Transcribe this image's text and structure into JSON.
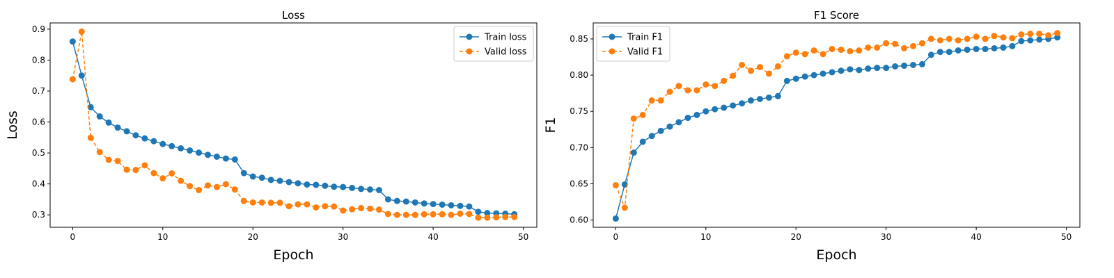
{
  "chart_data": [
    {
      "type": "line",
      "title": "Loss",
      "xlabel": "Epoch",
      "ylabel": "Loss",
      "xlim": [
        -2.5,
        51.5
      ],
      "ylim": [
        0.26,
        0.92
      ],
      "xticks": [
        0,
        10,
        20,
        30,
        40,
        50
      ],
      "yticks": [
        0.3,
        0.4,
        0.5,
        0.6,
        0.7,
        0.8,
        0.9
      ],
      "ytick_labels": [
        "0.3",
        "0.4",
        "0.5",
        "0.6",
        "0.7",
        "0.8",
        "0.9"
      ],
      "grid": false,
      "legend_position": "top-right",
      "x": [
        0,
        1,
        2,
        3,
        4,
        5,
        6,
        7,
        8,
        9,
        10,
        11,
        12,
        13,
        14,
        15,
        16,
        17,
        18,
        19,
        20,
        21,
        22,
        23,
        24,
        25,
        26,
        27,
        28,
        29,
        30,
        31,
        32,
        33,
        34,
        35,
        36,
        37,
        38,
        39,
        40,
        41,
        42,
        43,
        44,
        45,
        46,
        47,
        48,
        49
      ],
      "series": [
        {
          "name": "Train loss",
          "color": "#1f77b4",
          "style": "solid",
          "values": [
            0.86,
            0.75,
            0.648,
            0.618,
            0.598,
            0.582,
            0.57,
            0.557,
            0.547,
            0.538,
            0.529,
            0.522,
            0.515,
            0.508,
            0.501,
            0.494,
            0.488,
            0.482,
            0.479,
            0.435,
            0.424,
            0.42,
            0.413,
            0.41,
            0.406,
            0.402,
            0.398,
            0.397,
            0.394,
            0.391,
            0.39,
            0.387,
            0.384,
            0.382,
            0.38,
            0.35,
            0.345,
            0.343,
            0.34,
            0.337,
            0.335,
            0.333,
            0.331,
            0.329,
            0.327,
            0.31,
            0.306,
            0.305,
            0.304,
            0.302
          ]
        },
        {
          "name": "Valid loss",
          "color": "#ff7f0e",
          "style": "dashed",
          "values": [
            0.738,
            0.892,
            0.549,
            0.503,
            0.478,
            0.474,
            0.446,
            0.445,
            0.46,
            0.435,
            0.418,
            0.434,
            0.41,
            0.393,
            0.38,
            0.395,
            0.39,
            0.399,
            0.382,
            0.345,
            0.34,
            0.34,
            0.339,
            0.339,
            0.328,
            0.334,
            0.334,
            0.324,
            0.328,
            0.327,
            0.314,
            0.318,
            0.322,
            0.32,
            0.317,
            0.303,
            0.3,
            0.3,
            0.3,
            0.302,
            0.302,
            0.302,
            0.3,
            0.304,
            0.303,
            0.291,
            0.291,
            0.292,
            0.293,
            0.293
          ]
        }
      ]
    },
    {
      "type": "line",
      "title": "F1 Score",
      "xlabel": "Epoch",
      "ylabel": "F1",
      "xlim": [
        -2.5,
        51.5
      ],
      "ylim": [
        0.59,
        0.872
      ],
      "xticks": [
        0,
        10,
        20,
        30,
        40,
        50
      ],
      "yticks": [
        0.6,
        0.65,
        0.7,
        0.75,
        0.8,
        0.85
      ],
      "ytick_labels": [
        "0.60",
        "0.65",
        "0.70",
        "0.75",
        "0.80",
        "0.85"
      ],
      "grid": false,
      "legend_position": "top-left",
      "x": [
        0,
        1,
        2,
        3,
        4,
        5,
        6,
        7,
        8,
        9,
        10,
        11,
        12,
        13,
        14,
        15,
        16,
        17,
        18,
        19,
        20,
        21,
        22,
        23,
        24,
        25,
        26,
        27,
        28,
        29,
        30,
        31,
        32,
        33,
        34,
        35,
        36,
        37,
        38,
        39,
        40,
        41,
        42,
        43,
        44,
        45,
        46,
        47,
        48,
        49
      ],
      "series": [
        {
          "name": "Train F1",
          "color": "#1f77b4",
          "style": "solid",
          "values": [
            0.602,
            0.649,
            0.693,
            0.708,
            0.716,
            0.723,
            0.729,
            0.735,
            0.741,
            0.745,
            0.75,
            0.753,
            0.755,
            0.758,
            0.761,
            0.765,
            0.767,
            0.769,
            0.771,
            0.792,
            0.795,
            0.798,
            0.8,
            0.802,
            0.804,
            0.806,
            0.808,
            0.807,
            0.809,
            0.81,
            0.81,
            0.812,
            0.813,
            0.814,
            0.815,
            0.828,
            0.832,
            0.832,
            0.834,
            0.835,
            0.836,
            0.836,
            0.837,
            0.838,
            0.84,
            0.847,
            0.848,
            0.849,
            0.85,
            0.852
          ]
        },
        {
          "name": "Valid F1",
          "color": "#ff7f0e",
          "style": "dashed",
          "values": [
            0.648,
            0.617,
            0.74,
            0.745,
            0.765,
            0.765,
            0.777,
            0.785,
            0.779,
            0.779,
            0.787,
            0.785,
            0.792,
            0.799,
            0.814,
            0.806,
            0.811,
            0.802,
            0.812,
            0.826,
            0.831,
            0.829,
            0.834,
            0.829,
            0.836,
            0.835,
            0.833,
            0.834,
            0.838,
            0.838,
            0.844,
            0.843,
            0.837,
            0.84,
            0.844,
            0.85,
            0.848,
            0.85,
            0.848,
            0.85,
            0.853,
            0.85,
            0.854,
            0.852,
            0.851,
            0.856,
            0.857,
            0.857,
            0.855,
            0.858
          ]
        }
      ]
    }
  ]
}
